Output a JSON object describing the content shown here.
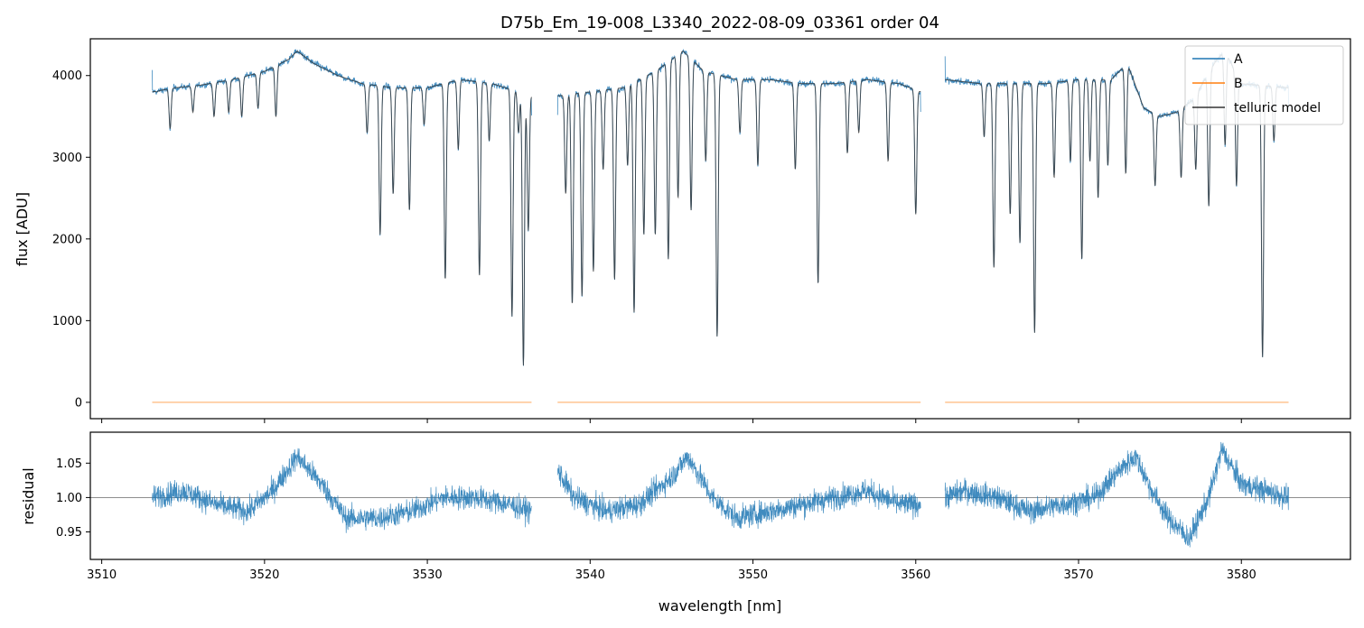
{
  "chart_data": [
    {
      "type": "line",
      "title": "D75b_Em_19-008_L3340_2022-08-09_03361  order 04",
      "xlabel": "",
      "ylabel": "flux [ADU]",
      "xlim": [
        3509.3,
        3586.7
      ],
      "ylim": [
        -200,
        4450
      ],
      "yticks": [
        0,
        1000,
        2000,
        3000,
        4000
      ],
      "ytick_labels": [
        "0",
        "1000",
        "2000",
        "3000",
        "4000"
      ],
      "xticks": [
        3510,
        3520,
        3530,
        3540,
        3550,
        3560,
        3570,
        3580
      ],
      "xtick_labels_visible": false,
      "grid": false,
      "legend_position": "top-right",
      "segments": [
        [
          3513.1,
          3536.4
        ],
        [
          3538.0,
          3560.3
        ],
        [
          3561.8,
          3582.9
        ]
      ],
      "series": [
        {
          "name": "A",
          "color": "#1f77b4",
          "continuum": [
            [
              3513.1,
              3800
            ],
            [
              3514.5,
              3850
            ],
            [
              3516,
              3880
            ],
            [
              3518,
              3950
            ],
            [
              3520,
              4050
            ],
            [
              3521.5,
              4200
            ],
            [
              3522,
              4300
            ],
            [
              3523,
              4150
            ],
            [
              3524.5,
              4000
            ],
            [
              3526,
              3900
            ],
            [
              3528,
              3850
            ],
            [
              3530,
              3850
            ],
            [
              3532,
              3950
            ],
            [
              3534,
              3900
            ],
            [
              3536.4,
              3750
            ],
            [
              3538,
              3750
            ],
            [
              3540,
              3800
            ],
            [
              3542,
              3850
            ],
            [
              3544,
              4050
            ],
            [
              3545.7,
              4300
            ],
            [
              3547,
              4050
            ],
            [
              3549,
              3950
            ],
            [
              3551,
              3950
            ],
            [
              3553,
              3900
            ],
            [
              3555,
              3900
            ],
            [
              3557,
              3950
            ],
            [
              3559,
              3900
            ],
            [
              3560.3,
              3800
            ],
            [
              3561.8,
              3950
            ],
            [
              3564,
              3900
            ],
            [
              3566,
              3900
            ],
            [
              3568,
              3900
            ],
            [
              3570,
              3950
            ],
            [
              3572,
              3950
            ],
            [
              3573,
              4150
            ],
            [
              3574,
              3600
            ],
            [
              3575,
              3500
            ],
            [
              3576,
              3550
            ],
            [
              3577,
              3700
            ],
            [
              3578.5,
              4200
            ],
            [
              3579,
              4300
            ],
            [
              3580,
              3900
            ],
            [
              3582.9,
              3850
            ]
          ],
          "absorption_lines": [
            [
              3513.4,
              3800
            ],
            [
              3514.2,
              3350
            ],
            [
              3515.6,
              3550
            ],
            [
              3516.9,
              3500
            ],
            [
              3517.8,
              3550
            ],
            [
              3518.6,
              3500
            ],
            [
              3519.6,
              3600
            ],
            [
              3520.7,
              3500
            ],
            [
              3526.3,
              3300
            ],
            [
              3527.1,
              2050
            ],
            [
              3527.9,
              2550
            ],
            [
              3528.9,
              2350
            ],
            [
              3529.8,
              3400
            ],
            [
              3531.1,
              1500
            ],
            [
              3531.9,
              3100
            ],
            [
              3533.2,
              1550
            ],
            [
              3533.8,
              3200
            ],
            [
              3535.2,
              1050
            ],
            [
              3535.6,
              3300
            ],
            [
              3535.9,
              450
            ],
            [
              3536.2,
              2100
            ],
            [
              3538.5,
              2550
            ],
            [
              3538.9,
              1200
            ],
            [
              3539.5,
              1300
            ],
            [
              3540.2,
              1600
            ],
            [
              3540.8,
              2850
            ],
            [
              3541.5,
              1500
            ],
            [
              3542.3,
              2900
            ],
            [
              3542.7,
              1100
            ],
            [
              3543.3,
              2050
            ],
            [
              3544.0,
              2050
            ],
            [
              3544.8,
              1750
            ],
            [
              3545.4,
              2500
            ],
            [
              3546.2,
              2350
            ],
            [
              3547.1,
              2950
            ],
            [
              3547.8,
              800
            ],
            [
              3549.2,
              3300
            ],
            [
              3550.3,
              2900
            ],
            [
              3552.6,
              2850
            ],
            [
              3554.0,
              1450
            ],
            [
              3555.8,
              3050
            ],
            [
              3556.5,
              3300
            ],
            [
              3558.3,
              2950
            ],
            [
              3560.0,
              2300
            ],
            [
              3564.2,
              3250
            ],
            [
              3564.8,
              1650
            ],
            [
              3565.8,
              2300
            ],
            [
              3566.4,
              1950
            ],
            [
              3567.3,
              850
            ],
            [
              3568.5,
              2750
            ],
            [
              3569.5,
              2950
            ],
            [
              3570.2,
              1750
            ],
            [
              3570.7,
              2950
            ],
            [
              3571.2,
              2500
            ],
            [
              3571.8,
              2900
            ],
            [
              3572.9,
              2800
            ],
            [
              3574.7,
              2650
            ],
            [
              3576.3,
              2750
            ],
            [
              3577.2,
              2850
            ],
            [
              3578.0,
              2400
            ],
            [
              3579.0,
              3150
            ],
            [
              3579.7,
              2650
            ],
            [
              3581.3,
              550
            ],
            [
              3582.0,
              3200
            ]
          ]
        },
        {
          "name": "B",
          "color": "#ff7f0e",
          "value": 0
        },
        {
          "name": "telluric model",
          "color": "#333333"
        }
      ]
    },
    {
      "type": "line",
      "title": "",
      "xlabel": "wavelength [nm]",
      "ylabel": "residual",
      "xlim": [
        3509.3,
        3586.7
      ],
      "ylim": [
        0.91,
        1.095
      ],
      "yticks": [
        0.95,
        1.0,
        1.05
      ],
      "ytick_labels": [
        "0.95",
        "1.00",
        "1.05"
      ],
      "xticks": [
        3510,
        3520,
        3530,
        3540,
        3550,
        3560,
        3570,
        3580
      ],
      "xtick_labels": [
        "3510",
        "3520",
        "3530",
        "3540",
        "3550",
        "3560",
        "3570",
        "3580"
      ],
      "reference_line": 1.0,
      "grid": false,
      "series": [
        {
          "color": "#1f77b4",
          "trend": [
            [
              3513.1,
              1.0
            ],
            [
              3515,
              1.01
            ],
            [
              3517,
              0.99
            ],
            [
              3519,
              0.98
            ],
            [
              3520.5,
              1.01
            ],
            [
              3522,
              1.06
            ],
            [
              3523.5,
              1.02
            ],
            [
              3525,
              0.97
            ],
            [
              3527,
              0.97
            ],
            [
              3529,
              0.98
            ],
            [
              3531,
              1.0
            ],
            [
              3533,
              1.0
            ],
            [
              3535,
              0.99
            ],
            [
              3536.4,
              0.98
            ],
            [
              3538,
              1.04
            ],
            [
              3539,
              1.0
            ],
            [
              3541,
              0.98
            ],
            [
              3543,
              0.99
            ],
            [
              3545,
              1.03
            ],
            [
              3546,
              1.06
            ],
            [
              3547.5,
              1.0
            ],
            [
              3549,
              0.97
            ],
            [
              3551,
              0.98
            ],
            [
              3553,
              0.99
            ],
            [
              3555,
              1.0
            ],
            [
              3557,
              1.01
            ],
            [
              3559,
              0.99
            ],
            [
              3560.3,
              0.99
            ],
            [
              3561.8,
              1.0
            ],
            [
              3563,
              1.01
            ],
            [
              3565,
              1.0
            ],
            [
              3567,
              0.98
            ],
            [
              3569,
              0.99
            ],
            [
              3571,
              1.0
            ],
            [
              3572.5,
              1.04
            ],
            [
              3573.5,
              1.06
            ],
            [
              3574.5,
              1.01
            ],
            [
              3575.5,
              0.97
            ],
            [
              3576.8,
              0.94
            ],
            [
              3578,
              1.0
            ],
            [
              3578.8,
              1.07
            ],
            [
              3580,
              1.02
            ],
            [
              3582.9,
              1.0
            ]
          ],
          "noise_amplitude": 0.022
        }
      ]
    }
  ]
}
